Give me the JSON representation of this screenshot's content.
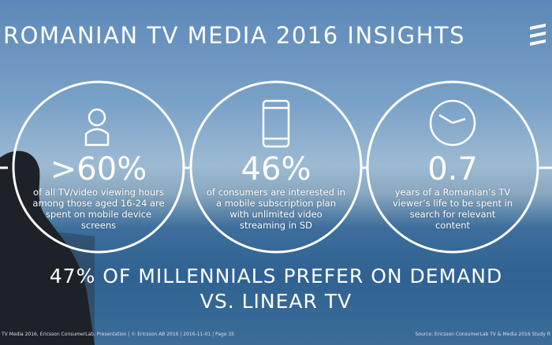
{
  "header": {
    "title": "ROMANIAN TV MEDIA 2016 INSIGHTS"
  },
  "stats": [
    {
      "value": ">60%",
      "lines": [
        "of all TV/video viewing hours",
        "among those aged 16-24 are",
        "spent on mobile device",
        "screens"
      ]
    },
    {
      "value": "46%",
      "lines": [
        "of consumers are interested in",
        "a mobile subscription plan",
        "with unlimited video",
        "streaming in SD"
      ]
    },
    {
      "value": "0.7",
      "lines": [
        "years of a Romanian’s TV",
        "viewer’s life to be spent in",
        "search for relevant",
        "content"
      ]
    }
  ],
  "headline": [
    "47% OF MILLENNIALS PREFER ON DEMAND",
    "VS. LINEAR TV"
  ],
  "footer": {
    "left": "TV Media 2016, Ericsson ConsumerLab, Presentation  |  © Ericsson AB 2016  |  2016-11-01  |  Page 35",
    "right": "Source: Ericsson ConsumerLab TV & Media 2016 Study R"
  }
}
